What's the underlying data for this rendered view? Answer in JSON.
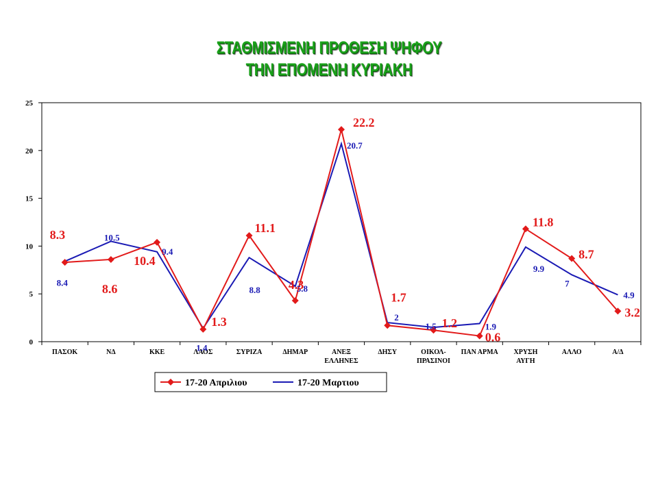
{
  "chart_data": {
    "type": "line",
    "title": "ΣΤΑΘΜΙΣΜΕΝΗ ΠΡΟΘΕΣΗ ΨΗΦΟΥ",
    "subtitle": "ΤΗΝ ΕΠΟΜΕΝΗ ΚΥΡΙΑΚΗ",
    "categories": [
      [
        "ΠΑΣΟΚ"
      ],
      [
        "ΝΔ"
      ],
      [
        "ΚΚΕ"
      ],
      [
        "ΛΑΟΣ"
      ],
      [
        "ΣΥΡΙΖΑ"
      ],
      [
        "ΔΗΜΑΡ"
      ],
      [
        "ΑΝΕΞ",
        "ΕΛΛΗΝΕΣ"
      ],
      [
        "ΔΗΣΥ"
      ],
      [
        "ΟΙΚΟΛ-",
        "ΠΡΑΣΙΝΟΙ"
      ],
      [
        "ΠΑΝ ΑΡΜΑ"
      ],
      [
        "ΧΡΥΣΗ",
        "ΑΥΓΗ"
      ],
      [
        "ΑΛΛΟ"
      ],
      [
        "Α/Δ"
      ]
    ],
    "ylim": [
      0,
      25
    ],
    "yticks": [
      "0",
      "5",
      "10",
      "15",
      "20",
      "25"
    ],
    "legend_position": "bottom",
    "series": [
      {
        "name": "17-20 Απριλιου",
        "color": "#e21a1a",
        "marker": "diamond",
        "values": [
          8.3,
          8.6,
          10.4,
          1.3,
          11.1,
          4.3,
          22.2,
          1.7,
          1.2,
          0.6,
          11.8,
          8.7,
          3.2
        ],
        "labels": [
          "8.3",
          "8.6",
          "10.4",
          "1.3",
          "11.1",
          "4.3",
          "22.2",
          "1.7",
          "1.2",
          "0.6",
          "11.8",
          "8.7",
          "3.2"
        ]
      },
      {
        "name": "17-20 Μαρτιου",
        "color": "#1a1ab4",
        "marker": "none",
        "values": [
          8.4,
          10.5,
          9.4,
          1.4,
          8.8,
          5.8,
          20.7,
          2,
          1.5,
          1.9,
          9.9,
          7,
          4.9
        ],
        "labels": [
          "8.4",
          "10.5",
          "9.4",
          "1.4",
          "8.8",
          "5.8",
          "20.7",
          "2",
          "1.5",
          "1.9",
          "9.9",
          "7",
          "4.9"
        ]
      }
    ]
  }
}
